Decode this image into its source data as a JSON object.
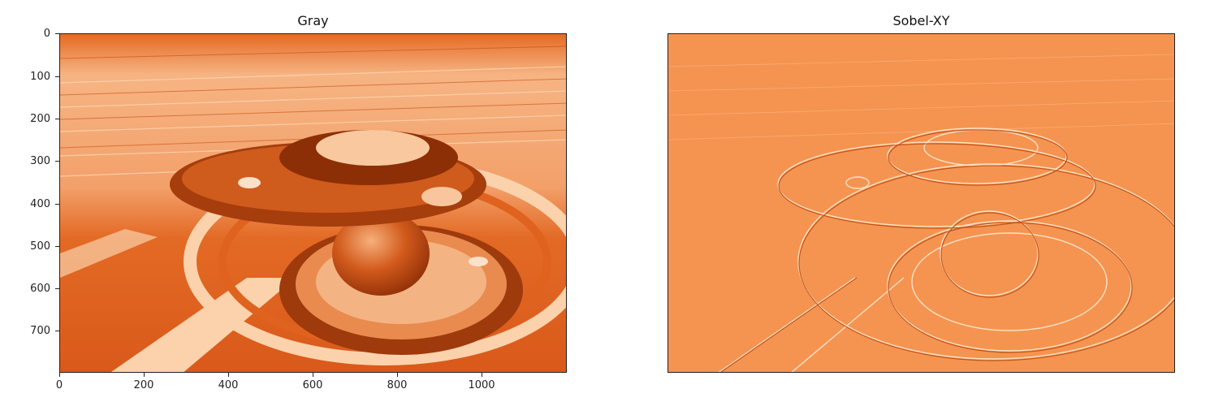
{
  "panels": [
    {
      "title": "Gray",
      "image_icon": "inverted-building-photo",
      "colormap": "Oranges",
      "yticks": [
        "0",
        "100",
        "200",
        "300",
        "400",
        "500",
        "600",
        "700"
      ],
      "xticks": [
        "0",
        "200",
        "400",
        "600",
        "800",
        "1000"
      ]
    },
    {
      "title": "Sobel-XY",
      "image_icon": "sobel-edge-map",
      "colormap": "Oranges",
      "yticks": [],
      "xticks": []
    }
  ],
  "colors": {
    "dark": "#c2410c",
    "mid": "#e8742f",
    "light": "#fbd5b0",
    "sobel_bg": "#f59450",
    "sobel_line_light": "#fde1c6",
    "sobel_line_dark": "#b84a12"
  }
}
